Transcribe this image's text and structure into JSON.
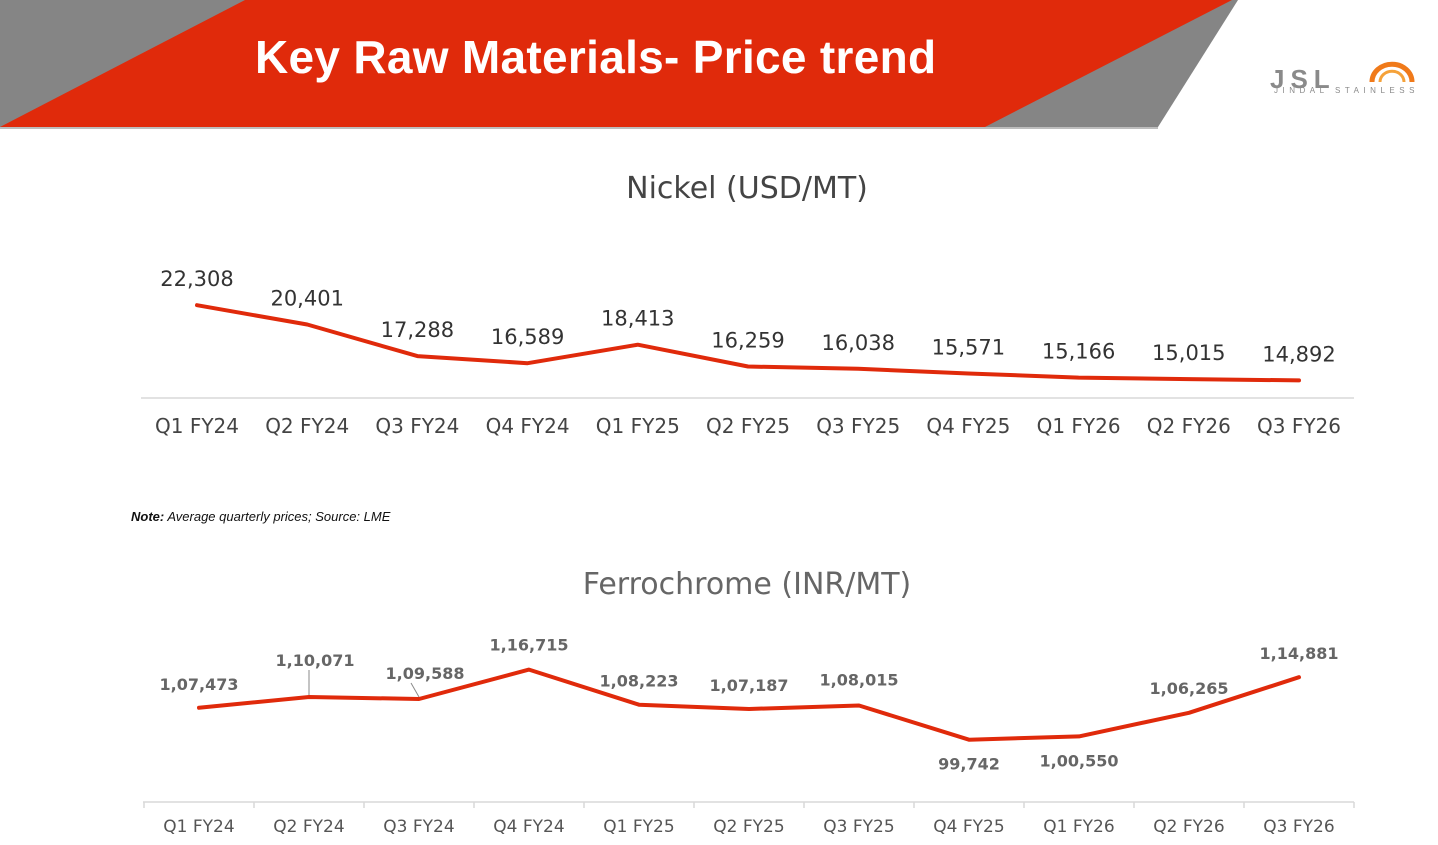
{
  "header": {
    "title": "Key Raw Materials- Price trend",
    "logo_text": "JSL",
    "logo_sub": "JINDAL STAINLESS",
    "colors": {
      "red": "#e02a0b",
      "gray": "#808080"
    }
  },
  "note": {
    "label": "Note:",
    "text": " Average quarterly prices; Source: LME"
  },
  "chart_data": [
    {
      "type": "line",
      "title": "Nickel (USD/MT)",
      "categories": [
        "Q1 FY24",
        "Q2 FY24",
        "Q3 FY24",
        "Q4 FY24",
        "Q1 FY25",
        "Q2 FY25",
        "Q3 FY25",
        "Q4 FY25",
        "Q1 FY26",
        "Q2 FY26",
        "Q3 FY26"
      ],
      "values": [
        22308,
        20401,
        17288,
        16589,
        18413,
        16259,
        16038,
        15571,
        15166,
        15015,
        14892
      ],
      "labels": [
        "22,308",
        "20,401",
        "17,288",
        "16,589",
        "18,413",
        "16,259",
        "16,038",
        "15,571",
        "15,166",
        "15,015",
        "14,892"
      ],
      "ylim": [
        10000,
        24000
      ],
      "line_color": "#e02a0b",
      "grid": false
    },
    {
      "type": "line",
      "title": "Ferrochrome (INR/MT)",
      "categories": [
        "Q1 FY24",
        "Q2 FY24",
        "Q3 FY24",
        "Q4 FY24",
        "Q1 FY25",
        "Q2 FY25",
        "Q3 FY25",
        "Q4 FY25",
        "Q1 FY26",
        "Q2 FY26",
        "Q3 FY26"
      ],
      "values": [
        107473,
        110071,
        109588,
        116715,
        108223,
        107187,
        108015,
        99742,
        100550,
        106265,
        114881
      ],
      "labels": [
        "1,07,473",
        "1,10,071",
        "1,09,588",
        "1,16,715",
        "1,08,223",
        "1,07,187",
        "1,08,015",
        "99,742",
        "1,00,550",
        "1,06,265",
        "1,14,881"
      ],
      "ylim": [
        90000,
        120000
      ],
      "line_color": "#e02a0b",
      "grid": false
    }
  ]
}
